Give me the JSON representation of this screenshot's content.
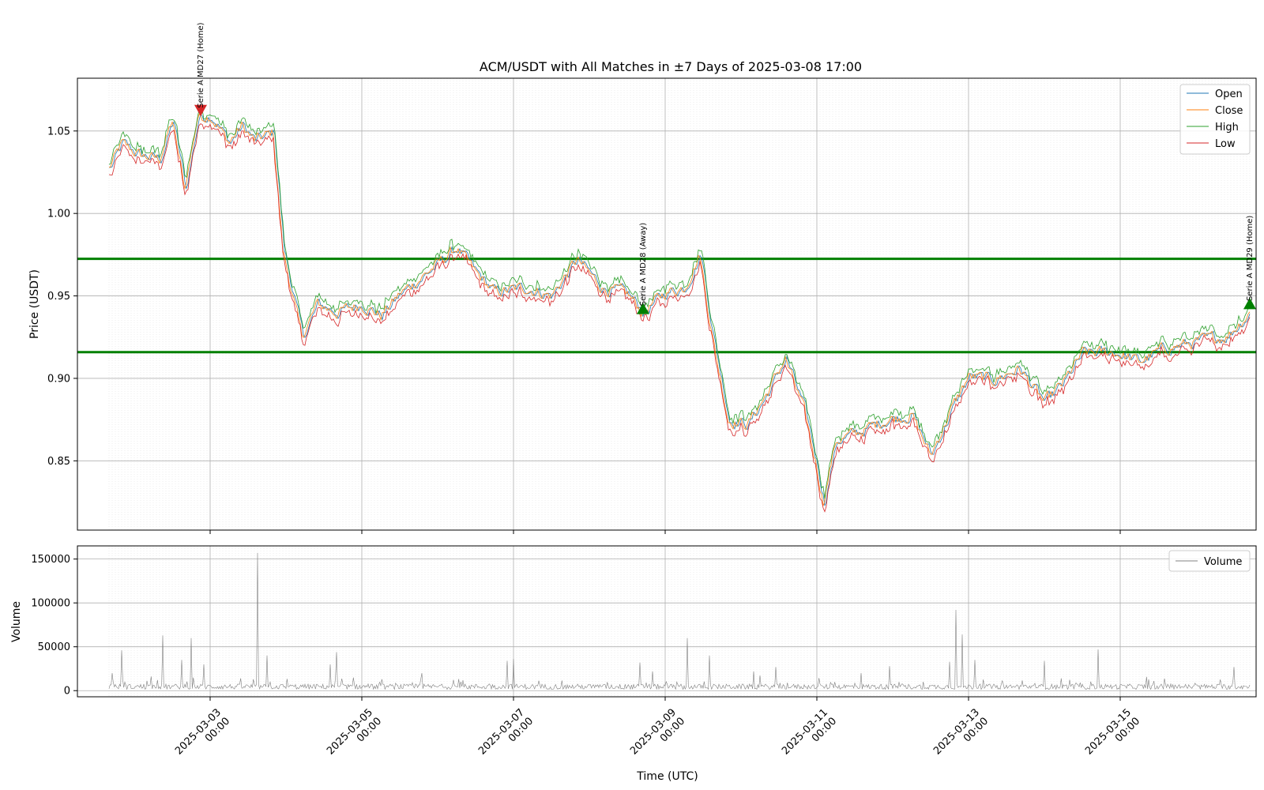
{
  "chart_data": [
    {
      "type": "line",
      "title": "ACM/USDT with All Matches in ±7 Days of 2025-03-08 17:00",
      "xlabel": "",
      "ylabel": "Price (USDT)",
      "x_range": [
        "2025-03-01 16:00",
        "2025-03-16 17:00"
      ],
      "xlim": [
        "2025-03-01 06:00",
        "2025-03-16 19:00"
      ],
      "ylim": [
        0.808,
        1.082
      ],
      "yticks": [
        0.85,
        0.9,
        0.95,
        1.0,
        1.05
      ],
      "ytick_labels": [
        "0.85",
        "0.90",
        "0.95",
        "1.00",
        "1.05"
      ],
      "grid": true,
      "legend_position": "top-right",
      "series": [
        {
          "name": "Open",
          "color": "#1f77b4"
        },
        {
          "name": "Close",
          "color": "#ff7f0e"
        },
        {
          "name": "High",
          "color": "#2ca02c"
        },
        {
          "name": "Low",
          "color": "#d62728"
        }
      ],
      "close_keypoints": [
        [
          "2025-03-01 16:00",
          1.027
        ],
        [
          "2025-03-01 20:00",
          1.042
        ],
        [
          "2025-03-02 02:00",
          1.035
        ],
        [
          "2025-03-02 08:00",
          1.033
        ],
        [
          "2025-03-02 12:00",
          1.056
        ],
        [
          "2025-03-02 16:00",
          1.015
        ],
        [
          "2025-03-02 20:00",
          1.058
        ],
        [
          "2025-03-03 00:00",
          1.06
        ],
        [
          "2025-03-03 06:00",
          1.043
        ],
        [
          "2025-03-03 10:00",
          1.053
        ],
        [
          "2025-03-03 14:00",
          1.044
        ],
        [
          "2025-03-03 20:00",
          1.049
        ],
        [
          "2025-03-03 23:00",
          0.978
        ],
        [
          "2025-03-04 05:00",
          0.925
        ],
        [
          "2025-03-04 10:00",
          0.945
        ],
        [
          "2025-03-04 16:00",
          0.94
        ],
        [
          "2025-03-05 00:00",
          0.945
        ],
        [
          "2025-03-05 06:00",
          0.938
        ],
        [
          "2025-03-05 12:00",
          0.951
        ],
        [
          "2025-03-05 20:00",
          0.963
        ],
        [
          "2025-03-06 06:00",
          0.979
        ],
        [
          "2025-03-06 12:00",
          0.964
        ],
        [
          "2025-03-06 18:00",
          0.952
        ],
        [
          "2025-03-07 04:00",
          0.955
        ],
        [
          "2025-03-07 12:00",
          0.95
        ],
        [
          "2025-03-07 20:00",
          0.972
        ],
        [
          "2025-03-08 04:00",
          0.955
        ],
        [
          "2025-03-08 12:00",
          0.951
        ],
        [
          "2025-03-08 17:00",
          0.94
        ],
        [
          "2025-03-09 00:00",
          0.952
        ],
        [
          "2025-03-09 06:00",
          0.955
        ],
        [
          "2025-03-09 11:00",
          0.975
        ],
        [
          "2025-03-09 15:00",
          0.925
        ],
        [
          "2025-03-09 20:00",
          0.875
        ],
        [
          "2025-03-10 02:00",
          0.872
        ],
        [
          "2025-03-10 08:00",
          0.89
        ],
        [
          "2025-03-10 14:00",
          0.912
        ],
        [
          "2025-03-10 20:00",
          0.88
        ],
        [
          "2025-03-11 00:00",
          0.846
        ],
        [
          "2025-03-11 02:00",
          0.825
        ],
        [
          "2025-03-11 06:00",
          0.862
        ],
        [
          "2025-03-11 14:00",
          0.868
        ],
        [
          "2025-03-11 22:00",
          0.875
        ],
        [
          "2025-03-12 06:00",
          0.878
        ],
        [
          "2025-03-12 12:00",
          0.853
        ],
        [
          "2025-03-12 18:00",
          0.879
        ],
        [
          "2025-03-13 00:00",
          0.901
        ],
        [
          "2025-03-13 08:00",
          0.899
        ],
        [
          "2025-03-13 16:00",
          0.906
        ],
        [
          "2025-03-14 00:00",
          0.885
        ],
        [
          "2025-03-14 06:00",
          0.897
        ],
        [
          "2025-03-14 12:00",
          0.915
        ],
        [
          "2025-03-14 22:00",
          0.916
        ],
        [
          "2025-03-15 06:00",
          0.91
        ],
        [
          "2025-03-15 14:00",
          0.918
        ],
        [
          "2025-03-16 00:00",
          0.922
        ],
        [
          "2025-03-16 10:00",
          0.926
        ],
        [
          "2025-03-16 17:00",
          0.94
        ]
      ],
      "horizontal_lines": [
        {
          "y": 0.9725,
          "color": "#008000"
        },
        {
          "y": 0.9159,
          "color": "#008000"
        }
      ],
      "annotations": [
        {
          "x": "2025-03-02 21:00",
          "y": 1.062,
          "text": "Serie A MD27 (Home)",
          "marker": "down-triangle",
          "color": "#d62728"
        },
        {
          "x": "2025-03-08 17:00",
          "y": 0.942,
          "text": "Serie A MD28 (Away)",
          "marker": "up-triangle",
          "color": "#008000"
        },
        {
          "x": "2025-03-16 17:00",
          "y": 0.945,
          "text": "Serie A MD29 (Home)",
          "marker": "up-triangle",
          "color": "#008000"
        }
      ]
    },
    {
      "type": "line",
      "title": "",
      "xlabel": "Time (UTC)",
      "ylabel": "Volume",
      "ylim": [
        -7000,
        165000
      ],
      "yticks": [
        0,
        50000,
        100000,
        150000
      ],
      "ytick_labels": [
        "0",
        "50000",
        "100000",
        "150000"
      ],
      "xtick_labels": [
        "2025-03-03 00:00",
        "2025-03-05 00:00",
        "2025-03-07 00:00",
        "2025-03-09 00:00",
        "2025-03-11 00:00",
        "2025-03-13 00:00",
        "2025-03-15 00:00"
      ],
      "grid": true,
      "legend_position": "top-right",
      "series": [
        {
          "name": "Volume",
          "color": "#808080"
        }
      ],
      "spikes": [
        [
          "2025-03-01 17:00",
          20000
        ],
        [
          "2025-03-01 20:00",
          46000
        ],
        [
          "2025-03-02 09:00",
          63000
        ],
        [
          "2025-03-02 15:00",
          35000
        ],
        [
          "2025-03-02 18:00",
          60000
        ],
        [
          "2025-03-02 22:00",
          30000
        ],
        [
          "2025-03-03 15:00",
          157000
        ],
        [
          "2025-03-03 18:00",
          40000
        ],
        [
          "2025-03-04 14:00",
          30000
        ],
        [
          "2025-03-04 16:00",
          44000
        ],
        [
          "2025-03-05 19:00",
          20000
        ],
        [
          "2025-03-06 22:00",
          34000
        ],
        [
          "2025-03-07 00:00",
          36000
        ],
        [
          "2025-03-08 16:00",
          32000
        ],
        [
          "2025-03-08 20:00",
          22000
        ],
        [
          "2025-03-09 07:00",
          60000
        ],
        [
          "2025-03-09 14:00",
          40000
        ],
        [
          "2025-03-10 04:00",
          22000
        ],
        [
          "2025-03-10 11:00",
          27000
        ],
        [
          "2025-03-11 14:00",
          20000
        ],
        [
          "2025-03-11 23:00",
          28000
        ],
        [
          "2025-03-12 18:00",
          33000
        ],
        [
          "2025-03-12 20:00",
          92000
        ],
        [
          "2025-03-12 22:00",
          64000
        ],
        [
          "2025-03-13 02:00",
          35000
        ],
        [
          "2025-03-14 00:00",
          34000
        ],
        [
          "2025-03-14 17:00",
          47000
        ],
        [
          "2025-03-16 12:00",
          27000
        ]
      ]
    }
  ]
}
